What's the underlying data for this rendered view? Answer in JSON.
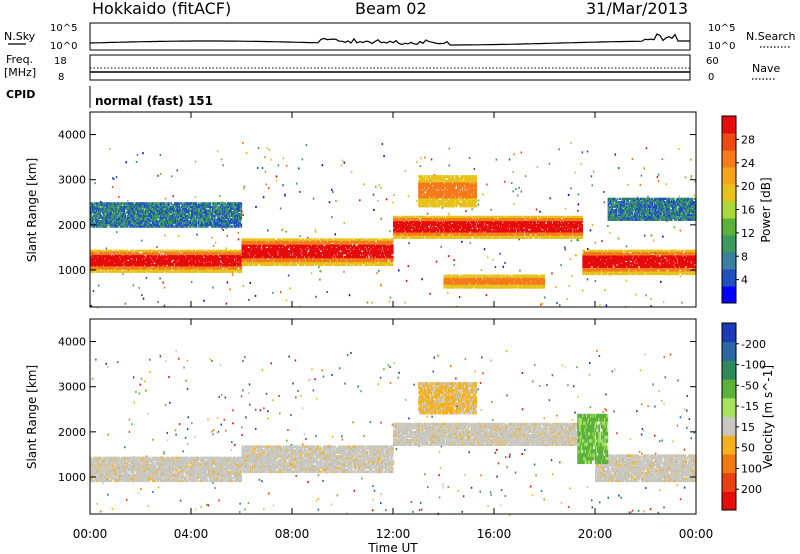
{
  "header": {
    "station": "Hokkaido (fitACF)",
    "beam": "Beam 02",
    "date": "31/Mar/2013"
  },
  "top_panels": {
    "nsky": {
      "label": "N.Sky",
      "tick_top": "10^5",
      "tick_bottom": "10^0"
    },
    "nsearch": {
      "label": "N.Search",
      "tick_top": "10^5",
      "tick_bottom": "10^0"
    },
    "freq": {
      "label_line1": "Freq.",
      "label_line2": "[MHz]",
      "tick_top": "18",
      "tick_bottom": "8"
    },
    "nave": {
      "label": "Nave",
      "tick_top": "60",
      "tick_bottom": "0"
    },
    "cpid": {
      "label": "CPID",
      "mode_text": "normal (fast) 151"
    }
  },
  "chart_data": [
    {
      "type": "heatmap",
      "title": "",
      "xlabel": "",
      "ylabel": "Slant Range [km]",
      "xlim": [
        0,
        24
      ],
      "ylim": [
        180,
        4500
      ],
      "yticks": [
        1000,
        2000,
        3000,
        4000
      ],
      "colorbar": {
        "label": "Power [dB]",
        "ticks": [
          "4",
          "8",
          "12",
          "16",
          "20",
          "24",
          "28"
        ],
        "colors": [
          "#0000ff",
          "#2050c0",
          "#3a7fa0",
          "#3c9a60",
          "#5ab23a",
          "#a8d83a",
          "#e6c21a",
          "#f5a51a",
          "#f57a1a",
          "#f04a14",
          "#e60c0c"
        ]
      },
      "bands": [
        {
          "t_start": 0,
          "t_end": 6,
          "r_low": 950,
          "r_high": 1450,
          "level": "strong"
        },
        {
          "t_start": 6,
          "t_end": 12,
          "r_low": 1100,
          "r_high": 1700,
          "level": "strong"
        },
        {
          "t_start": 12,
          "t_end": 19.5,
          "r_low": 1700,
          "r_high": 2200,
          "level": "strong"
        },
        {
          "t_start": 19.5,
          "t_end": 24,
          "r_low": 900,
          "r_high": 1450,
          "level": "strong"
        },
        {
          "t_start": 13,
          "t_end": 15.3,
          "r_low": 2400,
          "r_high": 3100,
          "level": "medium"
        },
        {
          "t_start": 0,
          "t_end": 6,
          "r_low": 1950,
          "r_high": 2500,
          "level": "weak"
        },
        {
          "t_start": 14,
          "t_end": 18,
          "r_low": 600,
          "r_high": 900,
          "level": "medium"
        },
        {
          "t_start": 20.5,
          "t_end": 24,
          "r_low": 2100,
          "r_high": 2600,
          "level": "weak"
        }
      ]
    },
    {
      "type": "heatmap",
      "title": "",
      "xlabel": "Time UT",
      "ylabel": "Slant Range [km]",
      "xlim": [
        0,
        24
      ],
      "ylim": [
        180,
        4500
      ],
      "xticks": [
        "00:00",
        "04:00",
        "08:00",
        "12:00",
        "16:00",
        "20:00",
        "00:00"
      ],
      "yticks": [
        1000,
        2000,
        3000,
        4000
      ],
      "colorbar": {
        "label": "Velocity [m s^-1]",
        "ticks": [
          "200",
          "100",
          "50",
          "15",
          "-15",
          "-50",
          "-100",
          "-200"
        ],
        "colors": [
          "#1a3ab8",
          "#2a6aa0",
          "#2e8a5a",
          "#5ab23a",
          "#a8e060",
          "#c8c8c0",
          "#f5b020",
          "#f07a10",
          "#e84010",
          "#e60c0c"
        ]
      },
      "bands": [
        {
          "t_start": 0,
          "t_end": 6,
          "r_low": 900,
          "r_high": 1450,
          "level": "ground"
        },
        {
          "t_start": 6,
          "t_end": 12,
          "r_low": 1100,
          "r_high": 1700,
          "level": "ground"
        },
        {
          "t_start": 12,
          "t_end": 20,
          "r_low": 1700,
          "r_high": 2200,
          "level": "ground"
        },
        {
          "t_start": 20,
          "t_end": 24,
          "r_low": 900,
          "r_high": 1500,
          "level": "ground"
        },
        {
          "t_start": 13,
          "t_end": 15.3,
          "r_low": 2400,
          "r_high": 3100,
          "level": "away"
        },
        {
          "t_start": 19.3,
          "t_end": 20.5,
          "r_low": 1300,
          "r_high": 2400,
          "level": "toward"
        }
      ]
    }
  ]
}
